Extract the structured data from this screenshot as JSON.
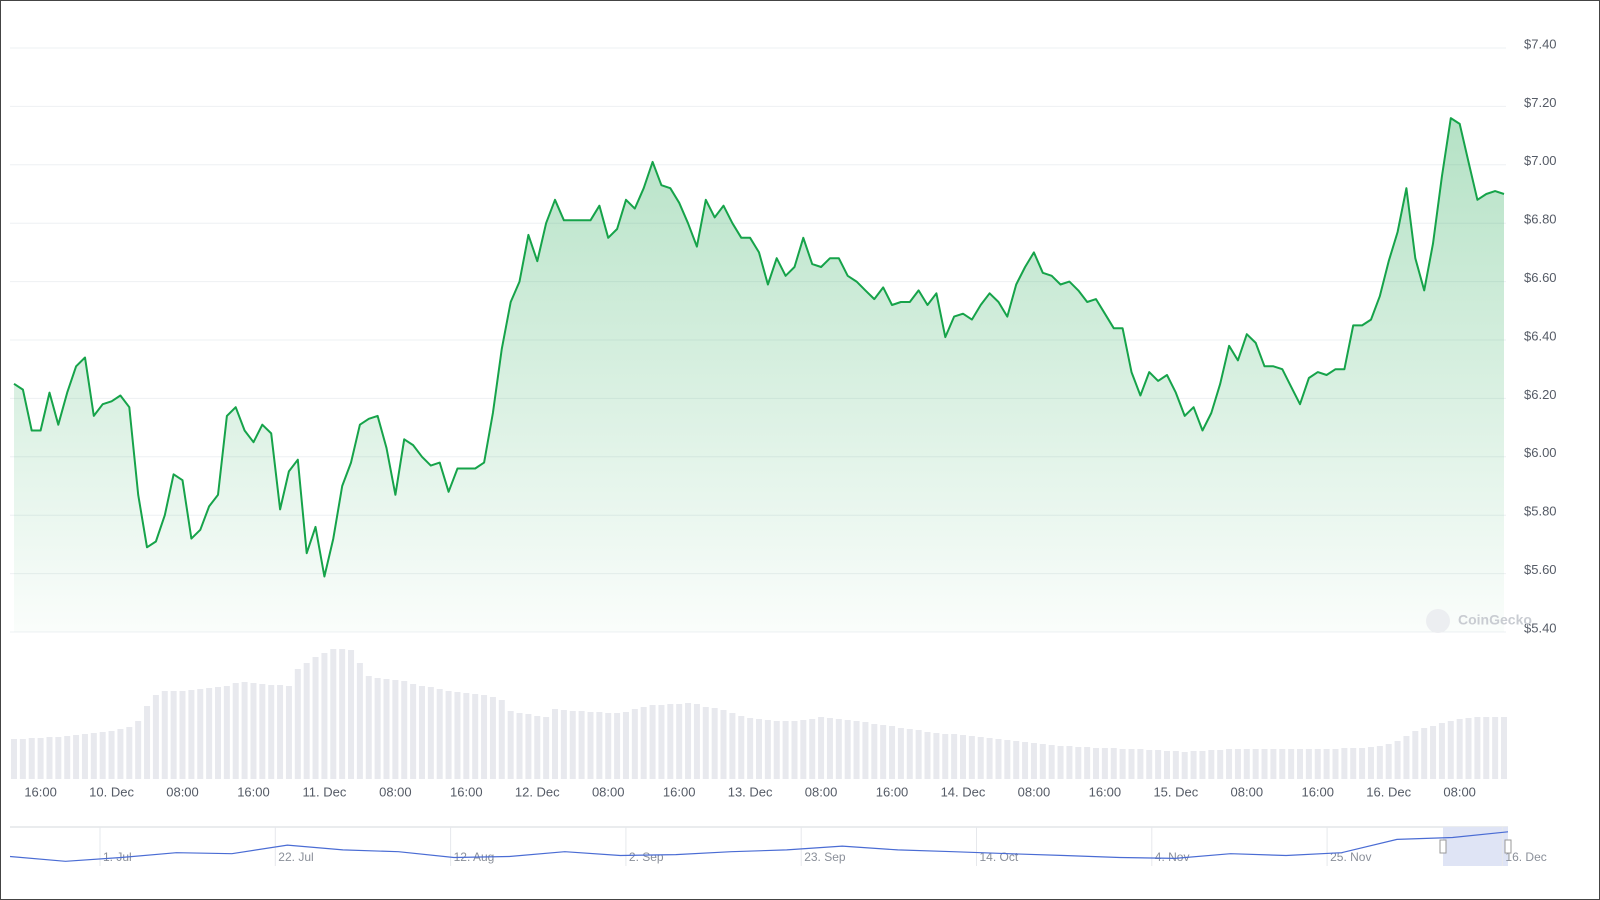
{
  "chart_data": {
    "type": "line",
    "watermark": "CoinGecko",
    "color": "#16a34a",
    "categories": [
      null,
      null,
      null,
      "16:00",
      null,
      null,
      null,
      null,
      null,
      null,
      null,
      "10. Dec",
      null,
      null,
      null,
      null,
      null,
      null,
      null,
      "08:00",
      null,
      null,
      null,
      null,
      null,
      null,
      null,
      "16:00",
      null,
      null,
      null,
      null,
      null,
      null,
      null,
      "11. Dec",
      null,
      null,
      null,
      null,
      null,
      null,
      null,
      "08:00",
      null,
      null,
      null,
      null,
      null,
      null,
      null,
      "16:00",
      null,
      null,
      null,
      null,
      null,
      null,
      null,
      "12. Dec",
      null,
      null,
      null,
      null,
      null,
      null,
      null,
      "08:00",
      null,
      null,
      null,
      null,
      null,
      null,
      null,
      "16:00",
      null,
      null,
      null,
      null,
      null,
      null,
      null,
      "13. Dec",
      null,
      null,
      null,
      null,
      null,
      null,
      null,
      "08:00",
      null,
      null,
      null,
      null,
      null,
      null,
      null,
      "16:00",
      null,
      null,
      null,
      null,
      null,
      null,
      null,
      "14. Dec",
      null,
      null,
      null,
      null,
      null,
      null,
      null,
      "08:00",
      null,
      null,
      null,
      null,
      null,
      null,
      null,
      "16:00",
      null,
      null,
      null,
      null,
      null,
      null,
      null,
      "15. Dec",
      null,
      null,
      null,
      null,
      null,
      null,
      null,
      "08:00",
      null,
      null,
      null,
      null,
      null,
      null,
      null,
      "16:00",
      null,
      null,
      null,
      null,
      null,
      null,
      null,
      "16. Dec",
      null,
      null,
      null,
      null,
      null,
      null,
      null,
      "08:00",
      null,
      null,
      null,
      null,
      null
    ],
    "values": [
      6.25,
      6.23,
      6.09,
      6.09,
      6.22,
      6.11,
      6.22,
      6.31,
      6.34,
      6.14,
      6.18,
      6.19,
      6.21,
      6.17,
      5.87,
      5.69,
      5.71,
      5.8,
      5.94,
      5.92,
      5.72,
      5.75,
      5.83,
      5.87,
      6.14,
      6.17,
      6.09,
      6.05,
      6.11,
      6.08,
      5.82,
      5.95,
      5.99,
      5.67,
      5.76,
      5.59,
      5.72,
      5.9,
      5.98,
      6.11,
      6.13,
      6.14,
      6.03,
      5.87,
      6.06,
      6.04,
      6.0,
      5.97,
      5.98,
      5.88,
      5.96,
      5.96,
      5.96,
      5.98,
      6.15,
      6.37,
      6.53,
      6.6,
      6.76,
      6.67,
      6.8,
      6.88,
      6.81,
      6.81,
      6.81,
      6.81,
      6.86,
      6.75,
      6.78,
      6.88,
      6.85,
      6.92,
      7.01,
      6.93,
      6.92,
      6.87,
      6.8,
      6.72,
      6.88,
      6.82,
      6.86,
      6.8,
      6.75,
      6.75,
      6.7,
      6.59,
      6.68,
      6.62,
      6.65,
      6.75,
      6.66,
      6.65,
      6.68,
      6.68,
      6.62,
      6.6,
      6.57,
      6.54,
      6.58,
      6.52,
      6.53,
      6.53,
      6.57,
      6.52,
      6.56,
      6.41,
      6.48,
      6.49,
      6.47,
      6.52,
      6.56,
      6.53,
      6.48,
      6.59,
      6.65,
      6.7,
      6.63,
      6.62,
      6.59,
      6.6,
      6.57,
      6.53,
      6.54,
      6.49,
      6.44,
      6.44,
      6.29,
      6.21,
      6.29,
      6.26,
      6.28,
      6.22,
      6.14,
      6.17,
      6.09,
      6.15,
      6.25,
      6.38,
      6.33,
      6.42,
      6.39,
      6.31,
      6.31,
      6.3,
      6.24,
      6.18,
      6.27,
      6.29,
      6.28,
      6.3,
      6.3,
      6.45,
      6.45,
      6.47,
      6.55,
      6.67,
      6.77,
      6.92,
      6.68,
      6.57,
      6.73,
      6.96,
      7.16,
      7.14,
      7.01,
      6.88,
      6.9,
      6.91,
      6.9
    ],
    "ylim": [
      5.4,
      7.4
    ],
    "yticks": [
      {
        "value": 5.4,
        "label": "$5.40"
      },
      {
        "value": 5.6,
        "label": "$5.60"
      },
      {
        "value": 5.8,
        "label": "$5.80"
      },
      {
        "value": 6.0,
        "label": "$6.00"
      },
      {
        "value": 6.2,
        "label": "$6.20"
      },
      {
        "value": 6.4,
        "label": "$6.40"
      },
      {
        "value": 6.6,
        "label": "$6.60"
      },
      {
        "value": 6.8,
        "label": "$6.80"
      },
      {
        "value": 7.0,
        "label": "$7.00"
      },
      {
        "value": 7.2,
        "label": "$7.20"
      },
      {
        "value": 7.4,
        "label": "$7.40"
      }
    ],
    "grid": true,
    "volume": [
      40,
      40,
      41,
      41,
      42,
      42,
      43,
      44,
      45,
      46,
      47,
      48,
      50,
      52,
      58,
      73,
      84,
      88,
      88,
      88,
      89,
      90,
      91,
      92,
      93,
      96,
      97,
      96,
      95,
      94,
      94,
      93,
      110,
      116,
      122,
      126,
      130,
      130,
      129,
      116,
      103,
      101,
      100,
      99,
      98,
      95,
      93,
      92,
      90,
      88,
      87,
      86,
      85,
      84,
      82,
      79,
      68,
      66,
      65,
      63,
      62,
      70,
      69,
      68,
      68,
      67,
      67,
      66,
      66,
      67,
      70,
      72,
      74,
      74,
      75,
      75,
      76,
      75,
      72,
      71,
      69,
      66,
      63,
      61,
      60,
      59,
      58,
      58,
      58,
      59,
      60,
      62,
      61,
      60,
      59,
      58,
      57,
      55,
      54,
      53,
      51,
      50,
      49,
      47,
      46,
      45,
      45,
      44,
      43,
      42,
      41,
      40,
      39,
      38,
      37,
      36,
      35,
      34,
      33,
      33,
      32,
      32,
      31,
      31,
      31,
      30,
      30,
      30,
      29,
      29,
      28,
      28,
      27,
      28,
      28,
      29,
      29,
      30,
      30,
      30,
      30,
      30,
      30,
      30,
      30,
      30,
      30,
      30,
      30,
      30,
      31,
      31,
      31,
      32,
      33,
      35,
      38,
      43,
      48,
      51,
      53,
      56,
      58,
      60,
      61,
      62,
      62,
      62,
      62
    ],
    "volume_color": "#e8e9ee",
    "y2lim": [
      0,
      140
    ],
    "navigator": {
      "labels": [
        "1. Jul",
        "22. Jul",
        "12. Aug",
        "2. Sep",
        "23. Sep",
        "14. Oct",
        "4. Nov",
        "25. Nov",
        "16. Dec"
      ],
      "values": [
        4.13,
        3.56,
        4.01,
        4.58,
        4.46,
        5.48,
        4.91,
        4.69,
        4.01,
        4.13,
        4.69,
        4.24,
        4.35,
        4.69,
        4.91,
        5.36,
        4.91,
        4.69,
        4.46,
        4.24,
        4.01,
        3.9,
        4.46,
        4.24,
        4.58,
        6.15,
        6.38,
        7.05
      ],
      "ylim": [
        3.0,
        7.5
      ],
      "color": "#4a6cd4"
    }
  }
}
